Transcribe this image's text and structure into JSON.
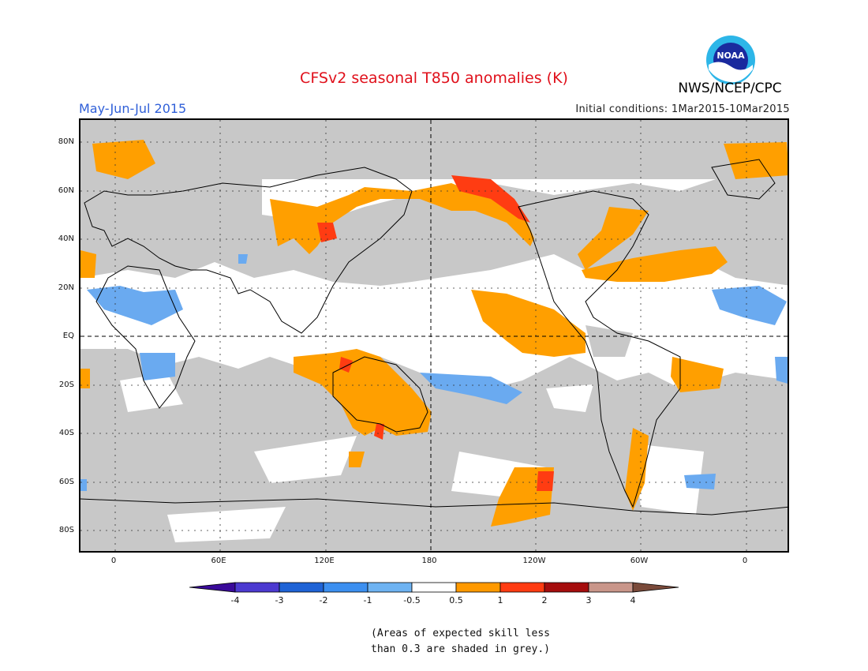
{
  "title": "CFSv2 seasonal T850 anomalies (K)",
  "period": "May-Jun-Jul 2015",
  "initial_conditions": "Initial conditions: 1Mar2015-10Mar2015",
  "agency": "NWS/NCEP/CPC",
  "logo_text": "NOAA",
  "lat_labels": [
    "80N",
    "60N",
    "40N",
    "20N",
    "EQ",
    "20S",
    "40S",
    "60S",
    "80S"
  ],
  "lon_labels": [
    "0",
    "60E",
    "120E",
    "180",
    "120W",
    "60W",
    "0"
  ],
  "colorbar": {
    "labels": [
      "-4",
      "-3",
      "-2",
      "-1",
      "-0.5",
      "0.5",
      "1",
      "2",
      "3",
      "4"
    ],
    "colors": [
      "#3a0a9a",
      "#4c3ad0",
      "#1f63d6",
      "#3c8ff0",
      "#6eb3f2",
      "#ffffff",
      "#ff9900",
      "#ff3c12",
      "#a50d0d",
      "#c9968a",
      "#7a4a3a"
    ]
  },
  "footnote": [
    "(Areas of expected skill less",
    "than 0.3 are shaded in grey.)"
  ],
  "colors": {
    "grey": "#c8c8c8",
    "orange": "#ff9f00",
    "red": "#ff3c12",
    "blue": "#6aaaf0"
  }
}
